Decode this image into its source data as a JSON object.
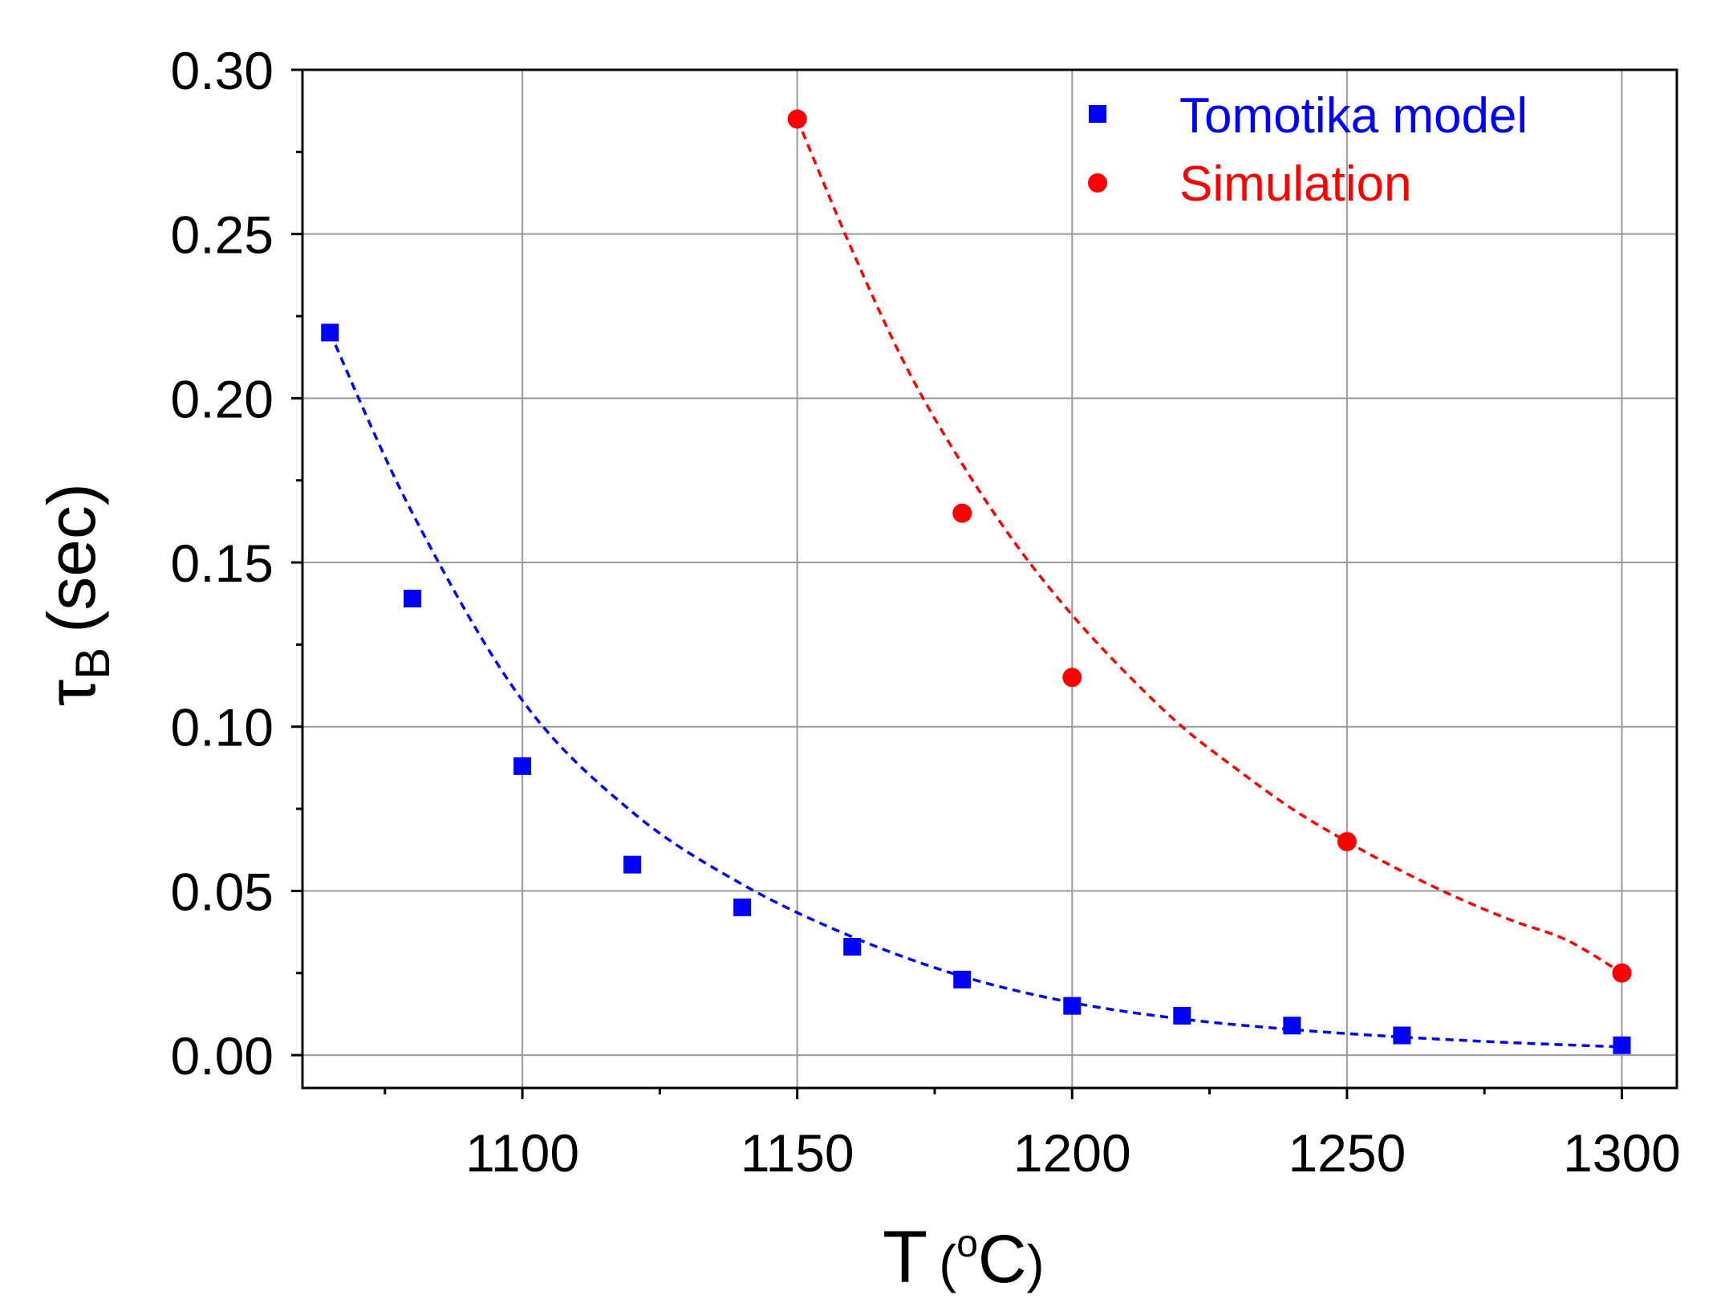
{
  "chart_data": {
    "type": "scatter",
    "title": "",
    "xlabel": {
      "main": "T",
      "paren_open": "(",
      "superscript": "o",
      "unit": "C",
      "paren_close": ")"
    },
    "ylabel": {
      "main": "τ",
      "subscript": "B",
      "unit": "(sec)"
    },
    "xlim": [
      1060,
      1310
    ],
    "ylim": [
      -0.01,
      0.3
    ],
    "xticks": [
      1100,
      1150,
      1200,
      1250,
      1300
    ],
    "xtick_labels": [
      "1100",
      "1150",
      "1200",
      "1250",
      "1300"
    ],
    "yticks": [
      0.0,
      0.05,
      0.1,
      0.15,
      0.2,
      0.25,
      0.3
    ],
    "ytick_labels": [
      "0.00",
      "0.05",
      "0.10",
      "0.15",
      "0.20",
      "0.25",
      "0.30"
    ],
    "grid": true,
    "legend_position": "top-right",
    "series": [
      {
        "name": "Tomotika model",
        "color": "#0000ff",
        "marker": "square",
        "x": [
          1065,
          1080,
          1100,
          1120,
          1140,
          1160,
          1180,
          1200,
          1220,
          1240,
          1260,
          1300
        ],
        "y": [
          0.22,
          0.139,
          0.088,
          0.058,
          0.045,
          0.033,
          0.023,
          0.015,
          0.012,
          0.009,
          0.006,
          0.003
        ],
        "fit": {
          "style": "dashed",
          "x": [
            1065,
            1080,
            1100,
            1120,
            1140,
            1160,
            1180,
            1200,
            1220,
            1240,
            1260,
            1280,
            1300
          ],
          "y": [
            0.22,
            0.165,
            0.108,
            0.074,
            0.052,
            0.036,
            0.024,
            0.016,
            0.011,
            0.0078,
            0.0055,
            0.0038,
            0.0025
          ]
        }
      },
      {
        "name": "Simulation",
        "color": "#ff0000",
        "marker": "circle",
        "x": [
          1150,
          1180,
          1200,
          1250,
          1300
        ],
        "y": [
          0.285,
          0.165,
          0.115,
          0.065,
          0.025
        ],
        "fit": {
          "style": "dashed",
          "x": [
            1150,
            1160,
            1170,
            1180,
            1190,
            1200,
            1210,
            1220,
            1230,
            1240,
            1250,
            1260,
            1270,
            1280,
            1290,
            1300
          ],
          "y": [
            0.285,
            0.245,
            0.209,
            0.18,
            0.155,
            0.134,
            0.116,
            0.1,
            0.087,
            0.075,
            0.065,
            0.056,
            0.048,
            0.041,
            0.035,
            0.025
          ]
        }
      }
    ]
  }
}
